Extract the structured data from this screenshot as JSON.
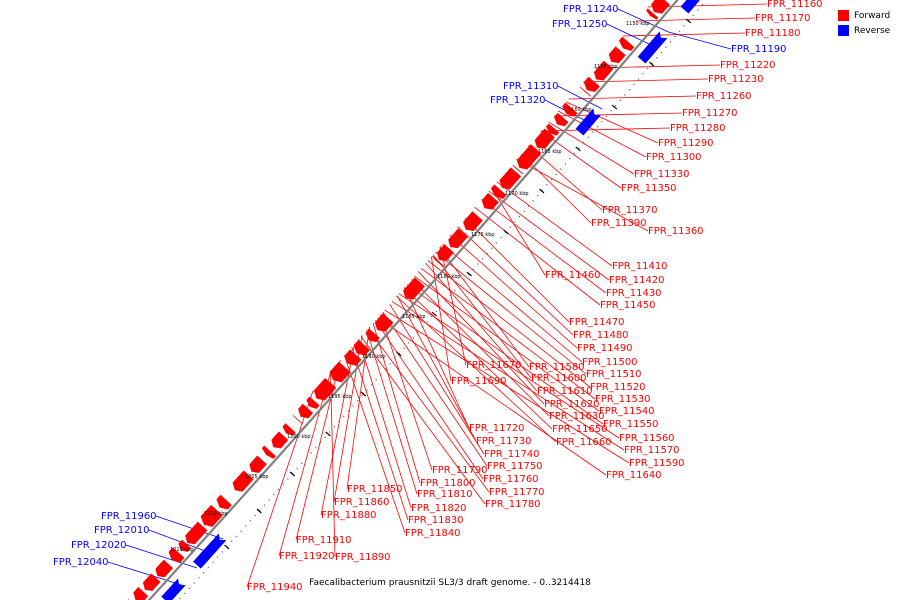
{
  "caption": "Faecalibacterium prausnitzii SL3/3 draft genome. - 0..3214418",
  "legend": [
    {
      "label": "Forward",
      "color": "#ff0000"
    },
    {
      "label": "Reverse",
      "color": "#0000ff"
    }
  ],
  "colors": {
    "forward": "#ff0000",
    "reverse": "#0000ff",
    "backbone": "#808080"
  },
  "ticks": [
    "1150 kbp",
    "1155 kbp",
    "1160 kbp",
    "1165 kbp",
    "1170 kbp",
    "1175 kbp",
    "1180 kbp",
    "1185 kbp",
    "1190 kbp",
    "1195 kbp",
    "1200 kbp",
    "1205 kbp",
    "1210 kbp",
    "1215 kbp"
  ],
  "forward_genes": [
    "FPR_11160",
    "FPR_11170",
    "FPR_11180",
    "FPR_11220",
    "FPR_11230",
    "FPR_11260",
    "FPR_11270",
    "FPR_11280",
    "FPR_11290",
    "FPR_11300",
    "FPR_11330",
    "FPR_11350",
    "FPR_11370",
    "FPR_11390",
    "FPR_11360",
    "FPR_11410",
    "FPR_11420",
    "FPR_11430",
    "FPR_11450",
    "FPR_11460",
    "FPR_11470",
    "FPR_11480",
    "FPR_11490",
    "FPR_11500",
    "FPR_11510",
    "FPR_11520",
    "FPR_11530",
    "FPR_11540",
    "FPR_11550",
    "FPR_11560",
    "FPR_11570",
    "FPR_11590",
    "FPR_11640",
    "FPR_11580",
    "FPR_11600",
    "FPR_11610",
    "FPR_11620",
    "FPR_11630",
    "FPR_11650",
    "FPR_11660",
    "FPR_11670",
    "FPR_11690",
    "FPR_11720",
    "FPR_11730",
    "FPR_11740",
    "FPR_11750",
    "FPR_11760",
    "FPR_11770",
    "FPR_11780",
    "FPR_11790",
    "FPR_11800",
    "FPR_11810",
    "FPR_11820",
    "FPR_11830",
    "FPR_11840",
    "FPR_11850",
    "FPR_11860",
    "FPR_11880",
    "FPR_11910",
    "FPR_11920",
    "FPR_11890",
    "FPR_11940"
  ],
  "reverse_genes": [
    "FPR_11240",
    "FPR_11250",
    "FPR_11190",
    "FPR_11310",
    "FPR_11320",
    "FPR_11960",
    "FPR_12010",
    "FPR_12020",
    "FPR_12040"
  ]
}
